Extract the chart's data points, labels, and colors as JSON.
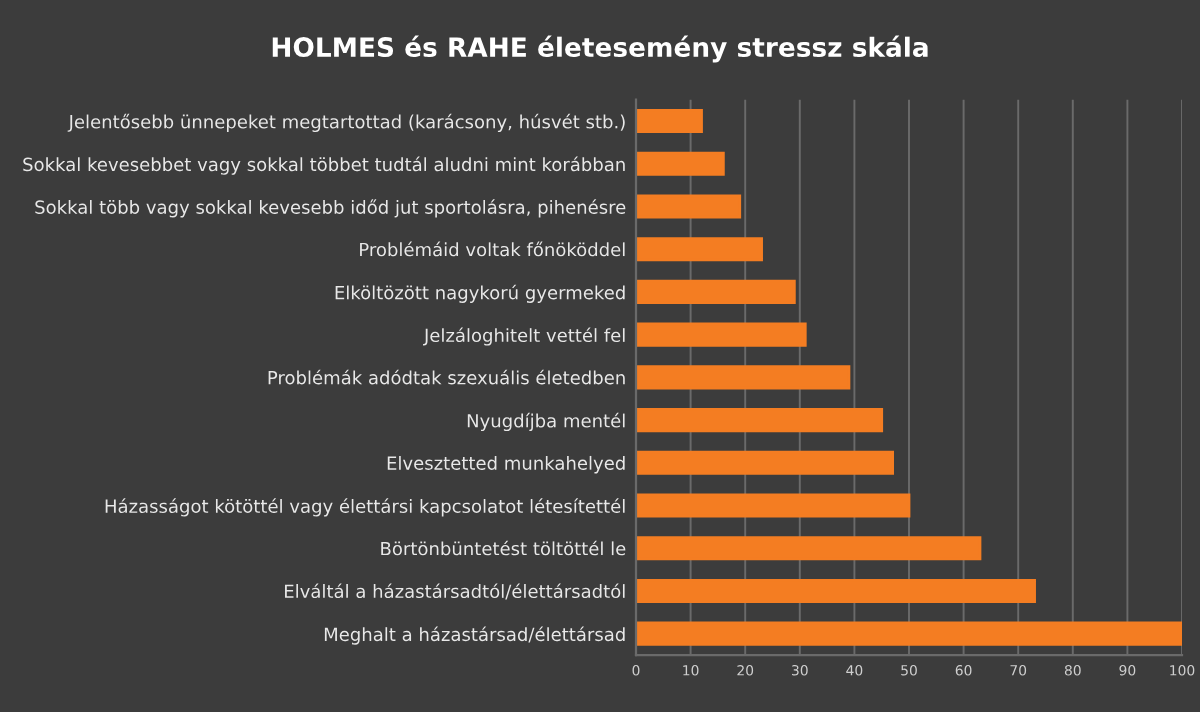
{
  "chart_data": {
    "type": "bar",
    "orientation": "horizontal",
    "title": "HOLMES és RAHE életesemény stressz skála",
    "categories": [
      "Jelentősebb ünnepeket megtartottad (karácsony, húsvét stb.)",
      "Sokkal kevesebbet vagy sokkal többet tudtál aludni mint korábban",
      "Sokkal több vagy sokkal kevesebb időd jut sportolásra, pihenésre",
      "Problémáid voltak főnököddel",
      "Elköltözött nagykorú gyermeked",
      "Jelzáloghitelt vettél fel",
      "Problémák adódtak szexuális életedben",
      "Nyugdíjba mentél",
      "Elvesztetted munkahelyed",
      "Házasságot kötöttél vagy élettársi kapcsolatot létesítettél",
      "Börtönbüntetést töltöttél le",
      "Elváltál a házastársadtól/élettársadtól",
      "Meghalt a házastársad/élettársad"
    ],
    "values": [
      12,
      16,
      19,
      23,
      29,
      31,
      39,
      45,
      47,
      50,
      63,
      73,
      100
    ],
    "color": "#f47d22",
    "xlim": [
      0,
      100
    ],
    "xticks": [
      0,
      10,
      20,
      30,
      40,
      50,
      60,
      70,
      80,
      90,
      100
    ],
    "grid": "x",
    "legend": false
  }
}
